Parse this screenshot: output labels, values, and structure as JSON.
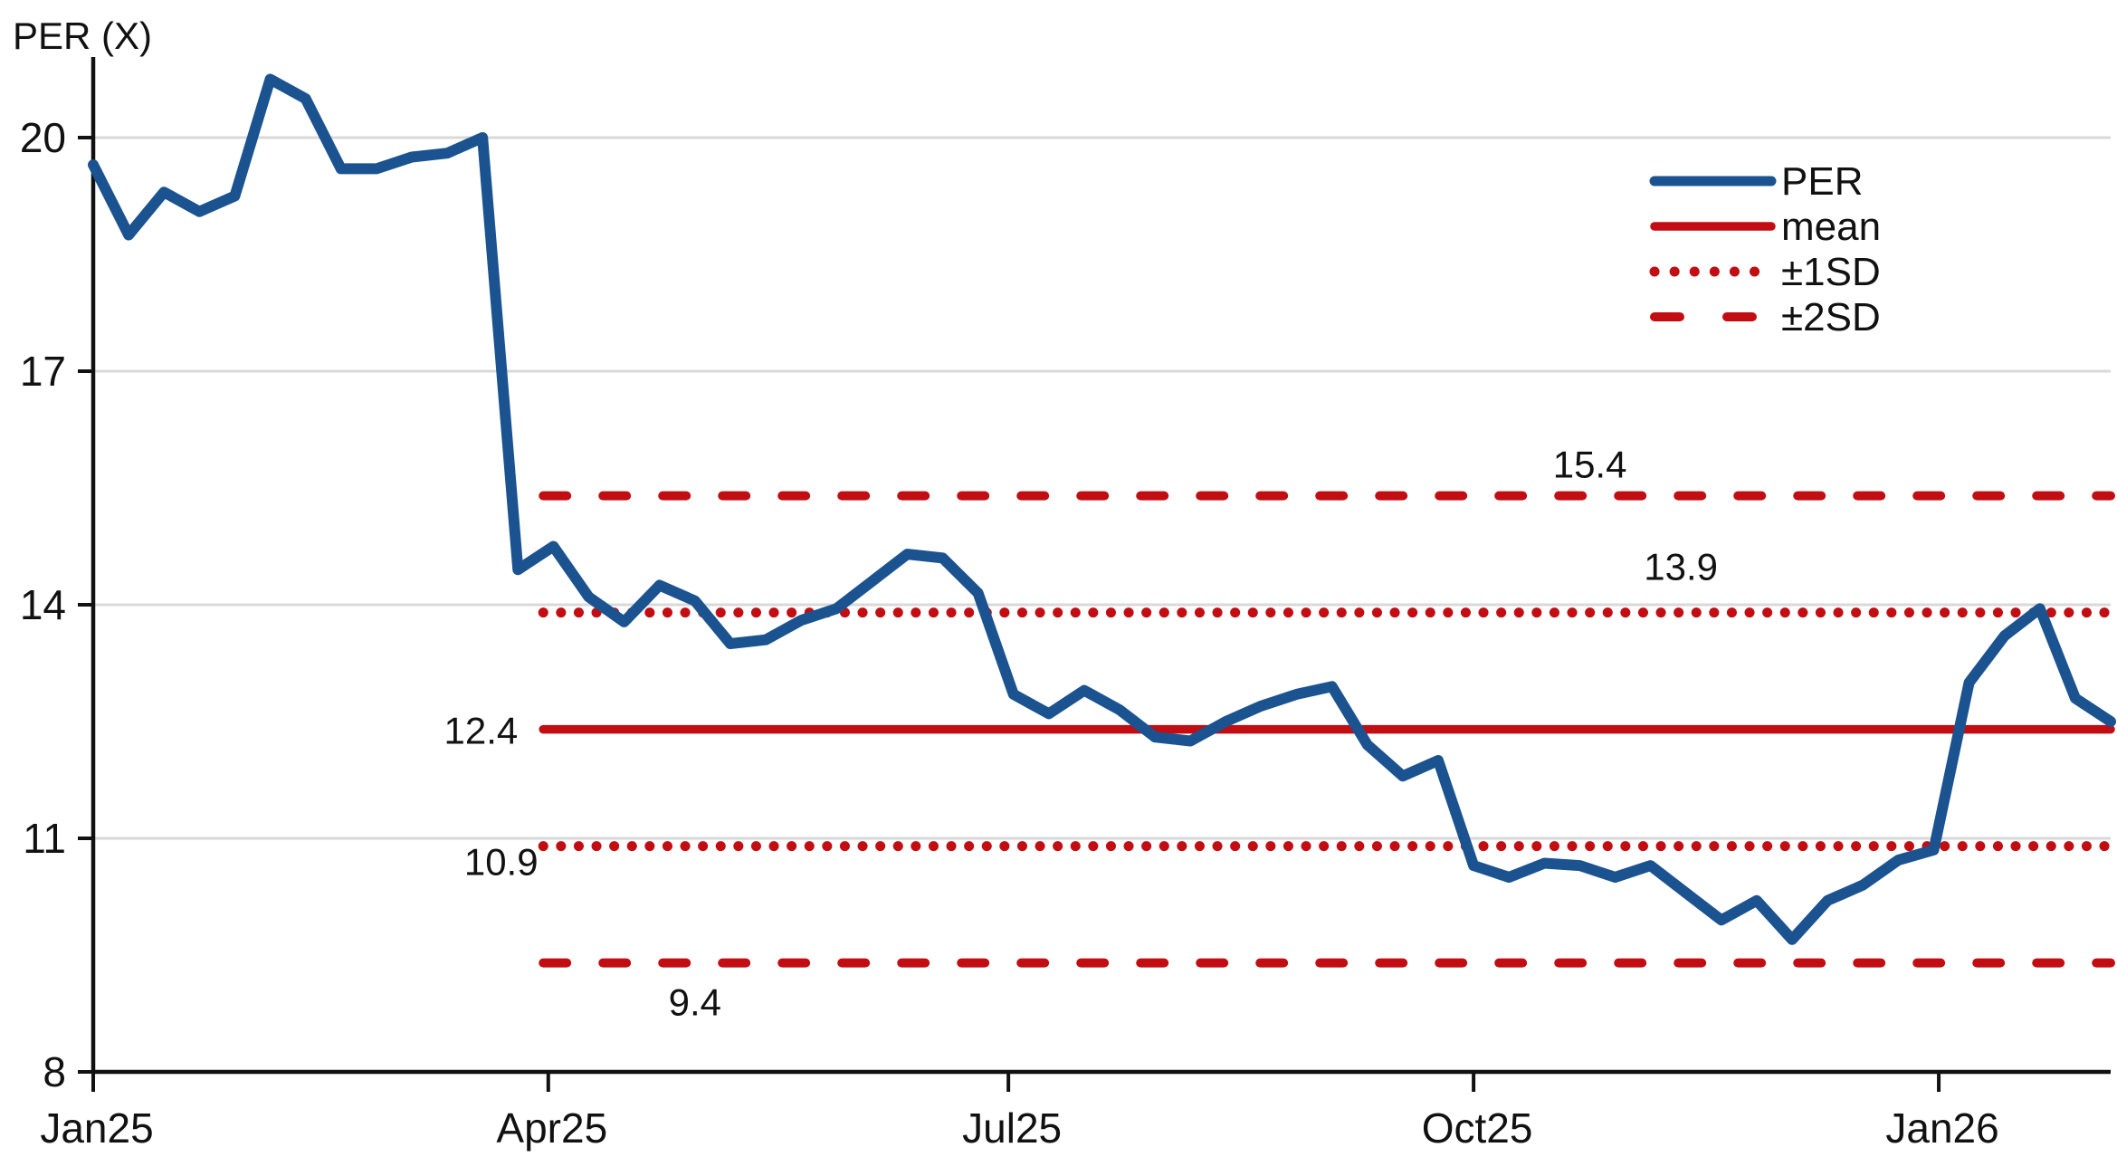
{
  "page": {
    "background": "#ffffff"
  },
  "chart_data": {
    "type": "line",
    "title": "PER (X)",
    "ylabel": "PER (X)",
    "xlabel": "",
    "grid": "horizontal",
    "x_axis": {
      "tick_labels": [
        "Jan25",
        "Apr25",
        "Jul25",
        "Oct25",
        "Jan26"
      ],
      "tick_days": [
        0,
        90,
        181,
        273,
        365
      ],
      "total_days": 399
    },
    "y_axis": {
      "ticks": [
        8,
        11,
        14,
        17,
        20
      ],
      "min": 8,
      "max": 21.05
    },
    "series": [
      {
        "name": "PER",
        "color": "#1b5391",
        "style": "solid",
        "sampling": "weekly",
        "start_label": "Jan25",
        "values": [
          19.65,
          18.75,
          19.3,
          19.05,
          19.25,
          20.75,
          20.5,
          19.6,
          19.6,
          19.75,
          19.8,
          20.0,
          14.45,
          14.75,
          14.1,
          13.78,
          14.25,
          14.05,
          13.5,
          13.55,
          13.8,
          13.95,
          14.3,
          14.65,
          14.6,
          14.15,
          12.85,
          12.6,
          12.9,
          12.65,
          12.3,
          12.25,
          12.5,
          12.7,
          12.85,
          12.95,
          12.2,
          11.8,
          12.0,
          10.65,
          10.5,
          10.68,
          10.65,
          10.5,
          10.65,
          10.3,
          9.95,
          10.2,
          9.7,
          10.2,
          10.4,
          10.72,
          10.85,
          13.0,
          13.6,
          13.95,
          12.8,
          12.5
        ]
      }
    ],
    "reference_start_day": 89,
    "reference_lines": [
      {
        "name": "mean",
        "value": 12.4,
        "style": "solid",
        "color": "#c20d12",
        "label": "12.4",
        "label_day": 84,
        "label_align": "right",
        "label_offset_y": 16
      },
      {
        "name": "plus1sd",
        "value": 13.9,
        "style": "dotted",
        "color": "#c20d12",
        "label": "13.9",
        "label_day": 314,
        "label_align": "center",
        "label_offset_y": -36
      },
      {
        "name": "minus1sd",
        "value": 10.9,
        "style": "dotted",
        "color": "#c20d12",
        "label": "10.9",
        "label_day": 88,
        "label_align": "right",
        "label_offset_y": 32
      },
      {
        "name": "plus2sd",
        "value": 15.4,
        "style": "dashed",
        "color": "#c20d12",
        "label": "15.4",
        "label_day": 296,
        "label_align": "center",
        "label_offset_y": -20
      },
      {
        "name": "minus2sd",
        "value": 9.4,
        "style": "dashed",
        "color": "#c20d12",
        "label": "9.4",
        "label_day": 119,
        "label_align": "center",
        "label_offset_y": 58
      }
    ],
    "legend": {
      "position": "top-right",
      "items": [
        {
          "label": "PER",
          "color": "#1b5391",
          "style": "solid"
        },
        {
          "label": "mean",
          "color": "#c20d12",
          "style": "solid"
        },
        {
          "label": "±1SD",
          "color": "#c20d12",
          "style": "dotted"
        },
        {
          "label": "±2SD",
          "color": "#c20d12",
          "style": "dashed"
        }
      ]
    },
    "colors": {
      "series_blue": "#1b5391",
      "reference_red": "#c20d12",
      "gridline_gray": "#d9d9d9",
      "axis_black": "#111111"
    }
  }
}
